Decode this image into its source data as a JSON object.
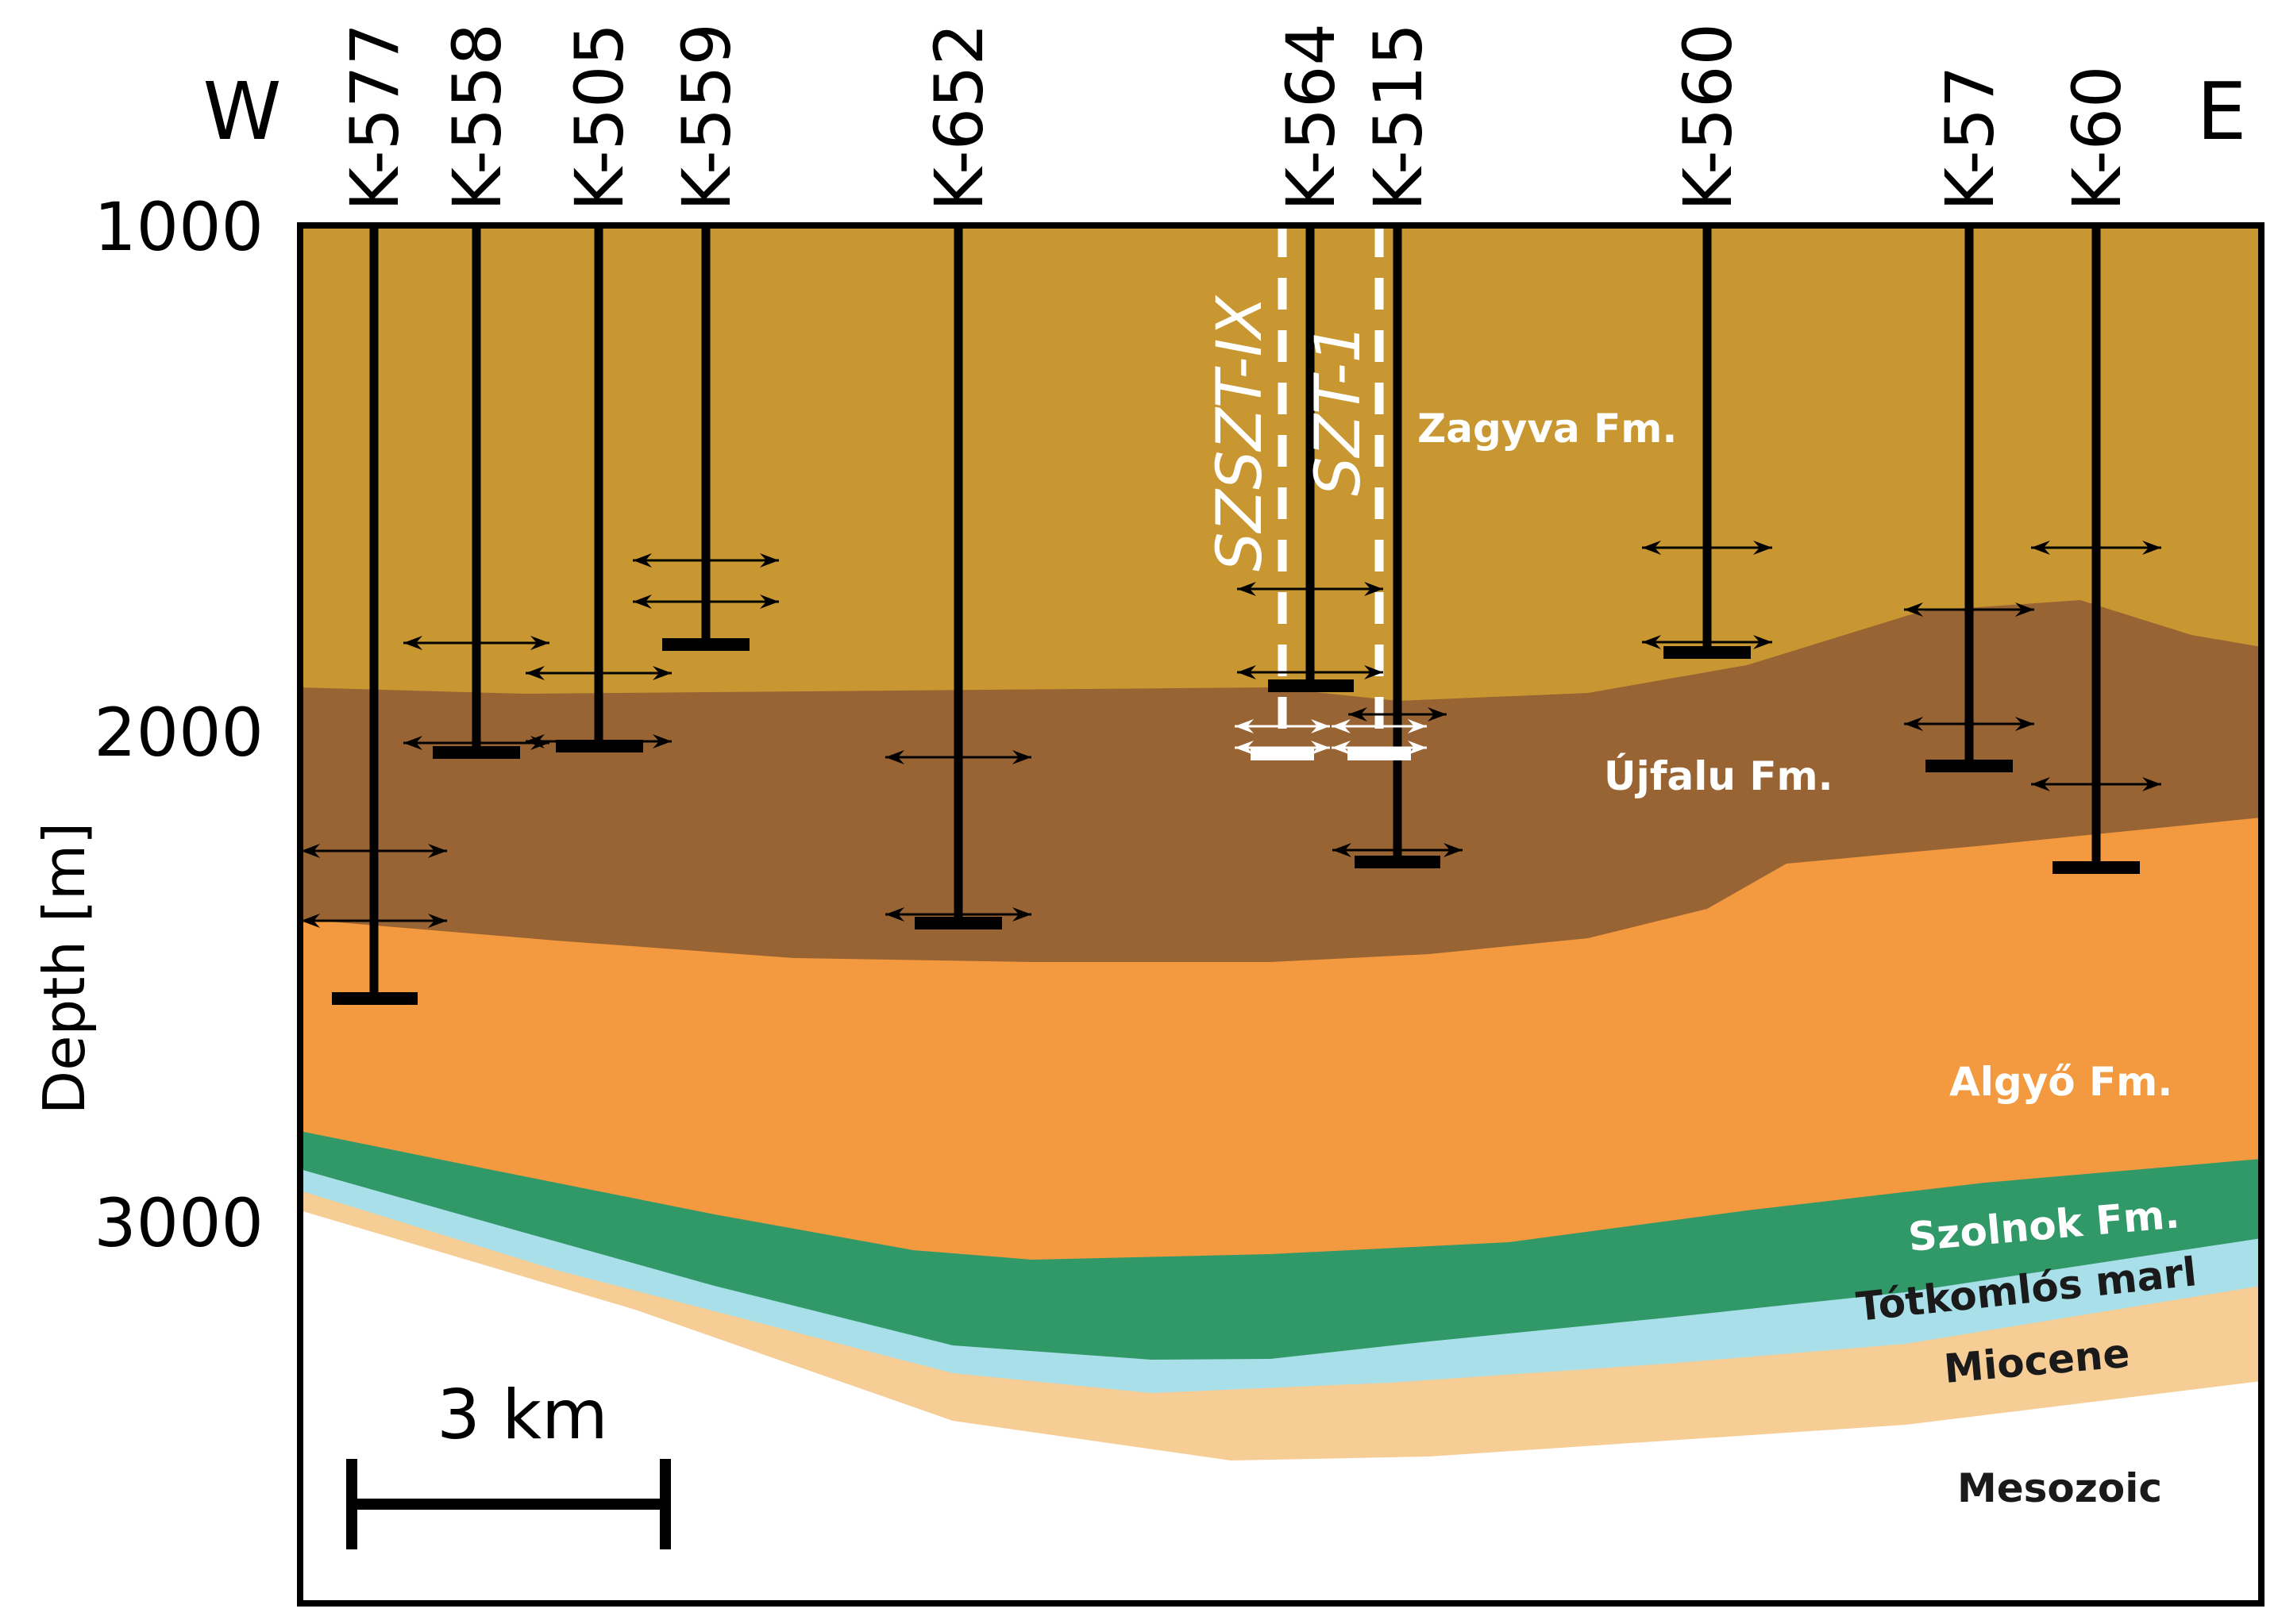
{
  "figure": {
    "compass": {
      "west": "W",
      "east": "E"
    },
    "y_axis": {
      "title": "Depth [m]",
      "ticks": [
        "1000",
        "2000",
        "3000"
      ]
    },
    "scale_bar": {
      "label": "3 km"
    },
    "colors": {
      "zagyva": "#c99732",
      "ujfalu": "#996433",
      "algyo": "#f3993f",
      "szolnok": "#319868",
      "totkomlos": "#a9dfe8",
      "miocene": "#f5cd95",
      "mesozoic": "#ffffff",
      "frame": "#000000"
    }
  },
  "wells": [
    {
      "name": "K-577"
    },
    {
      "name": "K-558"
    },
    {
      "name": "K-505"
    },
    {
      "name": "K-559"
    },
    {
      "name": "K-652"
    },
    {
      "name": "K-564"
    },
    {
      "name": "K-515"
    },
    {
      "name": "K-560"
    },
    {
      "name": "K-57"
    },
    {
      "name": "K-60"
    }
  ],
  "projected_wells": [
    {
      "name": "SZSZT-IX"
    },
    {
      "name": "SZT-1"
    }
  ],
  "formations": [
    {
      "name": "Zagyva Fm.",
      "color": "#ffffff"
    },
    {
      "name": "Újfalu Fm.",
      "color": "#ffffff"
    },
    {
      "name": "Algyő Fm.",
      "color": "#ffffff"
    },
    {
      "name": "Szolnok Fm.",
      "color": "#ffffff"
    },
    {
      "name": "Tótkomlós marl",
      "color": "#1a1a1a"
    },
    {
      "name": "Miocene",
      "color": "#1a1a1a"
    },
    {
      "name": "Mesozoic",
      "color": "#1a1a1a"
    }
  ]
}
